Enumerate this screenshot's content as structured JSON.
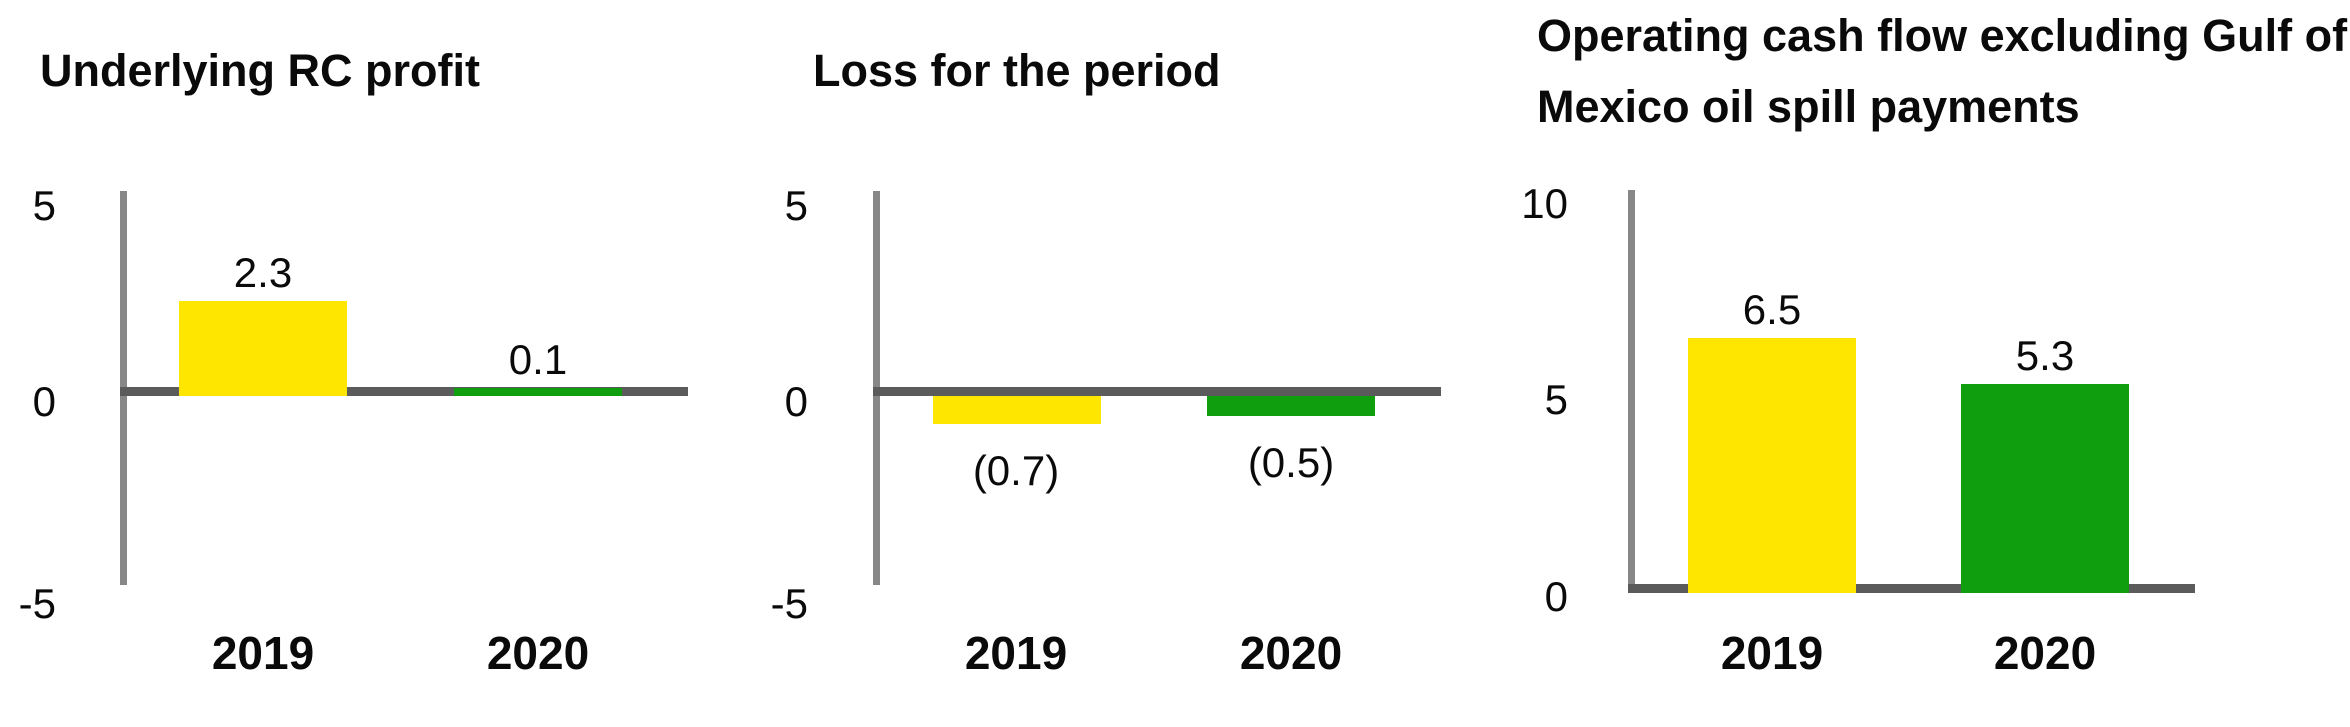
{
  "colors": {
    "bar_yellow": "#FFE600",
    "bar_green": "#0E9E0E",
    "axis_line": "#878787",
    "zero_line": "#5B5B5B",
    "text": "#0A0A0A"
  },
  "chart_data": [
    {
      "type": "bar",
      "id": "underlying-rc-profit",
      "title": "Underlying RC profit",
      "title_lines": [
        "Underlying RC profit"
      ],
      "categories": [
        "2019",
        "2020"
      ],
      "values": [
        2.3,
        0.1
      ],
      "value_labels": [
        "2.3",
        "0.1"
      ],
      "bar_colors": [
        "#FFE600",
        "#0E9E0E"
      ],
      "y_ticks": [
        {
          "value": 5,
          "label": "5"
        },
        {
          "value": 0,
          "label": "0"
        },
        {
          "value": -5,
          "label": "-5"
        }
      ],
      "ylim": [
        -5,
        5
      ],
      "grid": "off",
      "legend": "none"
    },
    {
      "type": "bar",
      "id": "loss-for-the-period",
      "title": "Loss for the period",
      "title_lines": [
        "Loss for the period"
      ],
      "categories": [
        "2019",
        "2020"
      ],
      "values": [
        -0.7,
        -0.5
      ],
      "value_labels": [
        "(0.7)",
        "(0.5)"
      ],
      "bar_colors": [
        "#FFE600",
        "#0E9E0E"
      ],
      "y_ticks": [
        {
          "value": 5,
          "label": "5"
        },
        {
          "value": 0,
          "label": "0"
        },
        {
          "value": -5,
          "label": "-5"
        }
      ],
      "ylim": [
        -5,
        5
      ],
      "grid": "off",
      "legend": "none"
    },
    {
      "type": "bar",
      "id": "operating-cash-flow-excluding-gulf-of-mexico-oil-spill-payments",
      "title": "Operating cash flow excluding Gulf of Mexico oil spill payments",
      "title_lines": [
        "Operating cash flow excluding Gulf of",
        "Mexico oil spill payments"
      ],
      "categories": [
        "2019",
        "2020"
      ],
      "values": [
        6.5,
        5.3
      ],
      "value_labels": [
        "6.5",
        "5.3"
      ],
      "bar_colors": [
        "#FFE600",
        "#0E9E0E"
      ],
      "y_ticks": [
        {
          "value": 10,
          "label": "10"
        },
        {
          "value": 5,
          "label": "5"
        },
        {
          "value": 0,
          "label": "0"
        }
      ],
      "ylim": [
        0,
        10
      ],
      "grid": "off",
      "legend": "none"
    }
  ]
}
